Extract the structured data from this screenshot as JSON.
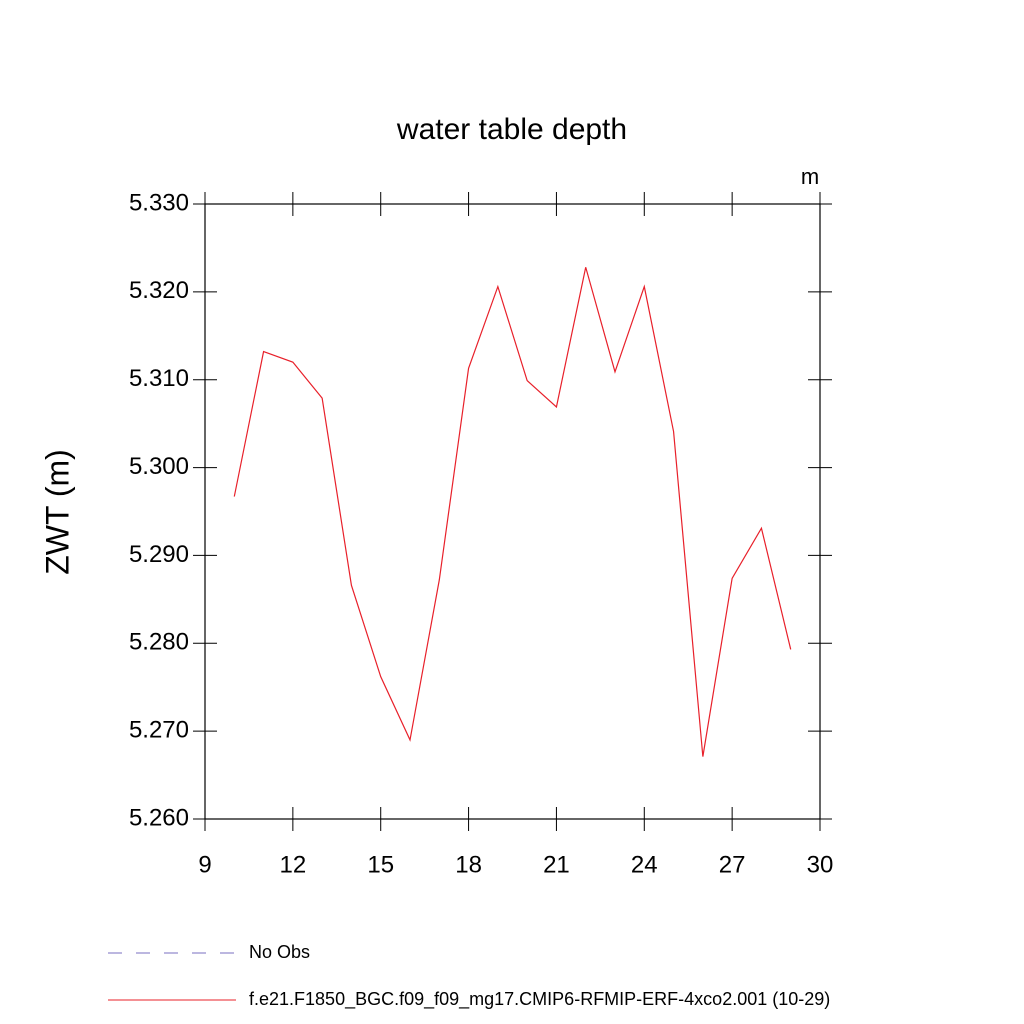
{
  "chart_data": {
    "type": "line",
    "title": "water table depth",
    "units": "m",
    "y_label": "ZWT  (m)",
    "x": [
      10,
      11,
      12,
      13,
      14,
      15,
      16,
      17,
      18,
      19,
      20,
      21,
      22,
      23,
      24,
      25,
      26,
      27,
      28,
      29
    ],
    "series": [
      {
        "name": "f.e21.F1850_BGC.f09_f09_mg17.CMIP6-RFMIP-ERF-4xco2.001 (10-29)",
        "color": "#e8202a",
        "values": [
          5.2967,
          5.3132,
          5.312,
          5.3079,
          5.2866,
          5.2762,
          5.269,
          5.2872,
          5.3113,
          5.3206,
          5.3099,
          5.3069,
          5.3228,
          5.3109,
          5.3206,
          5.3041,
          5.2671,
          5.2874,
          5.2931,
          5.2793
        ]
      }
    ],
    "reference": {
      "name": "No Obs",
      "color": "#7a6fc0",
      "style": "dashed"
    },
    "xlim": [
      9,
      30
    ],
    "xticks": [
      9,
      12,
      15,
      18,
      21,
      24,
      27,
      30
    ],
    "ylim": [
      5.26,
      5.33
    ],
    "yticks": [
      {
        "value": 5.26,
        "label": "5.260"
      },
      {
        "value": 5.27,
        "label": "5.270"
      },
      {
        "value": 5.28,
        "label": "5.280"
      },
      {
        "value": 5.29,
        "label": "5.290"
      },
      {
        "value": 5.3,
        "label": "5.300"
      },
      {
        "value": 5.31,
        "label": "5.310"
      },
      {
        "value": 5.32,
        "label": "5.320"
      },
      {
        "value": 5.33,
        "label": "5.330"
      }
    ]
  }
}
